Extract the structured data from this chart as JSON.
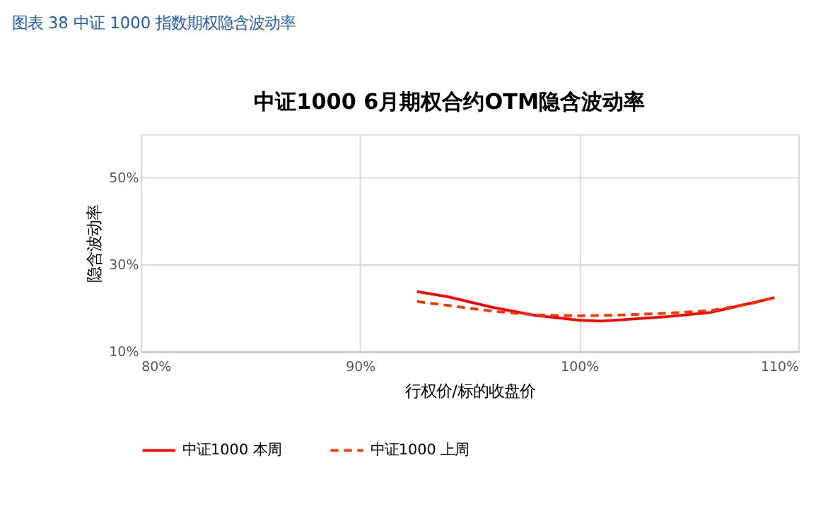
{
  "chart_data": {
    "type": "line",
    "title": "图表 38 中证 1000 指数期权隐含波动率",
    "subtitle": "中证1000 6月期权合约OTM隐含波动率",
    "xlabel": "行权价/标的收盘价",
    "ylabel": "隐含波动率",
    "series": [
      {
        "name": "中证1000 本周",
        "color": "#ff0000",
        "line_style": "solid",
        "x": [
          92.6,
          94,
          96,
          98,
          100,
          101,
          102,
          104,
          106,
          108,
          108.9
        ],
        "values": [
          23.8,
          22.6,
          20.2,
          18.3,
          17.2,
          17.0,
          17.3,
          18.0,
          19.0,
          21.3,
          22.4
        ]
      },
      {
        "name": "中证1000 上周",
        "color": "#ff3300",
        "line_style": "dashed",
        "x": [
          92.6,
          94,
          96,
          98,
          100,
          102,
          104,
          106,
          108,
          108.9
        ],
        "values": [
          21.5,
          20.6,
          19.3,
          18.4,
          18.2,
          18.4,
          18.8,
          19.4,
          21.2,
          22.4
        ]
      }
    ],
    "xlim": [
      80,
      110
    ],
    "xticks": [
      {
        "value": 80,
        "label": "80%"
      },
      {
        "value": 90,
        "label": "90%"
      },
      {
        "value": 100,
        "label": "100%"
      },
      {
        "value": 110,
        "label": "110%"
      }
    ],
    "ylim": [
      10,
      60
    ],
    "yticks": [
      {
        "value": 10,
        "label": "10%"
      },
      {
        "value": 30,
        "label": "30%"
      },
      {
        "value": 50,
        "label": "50%"
      }
    ],
    "grid": true,
    "legend": "bottom",
    "marker": "none"
  }
}
